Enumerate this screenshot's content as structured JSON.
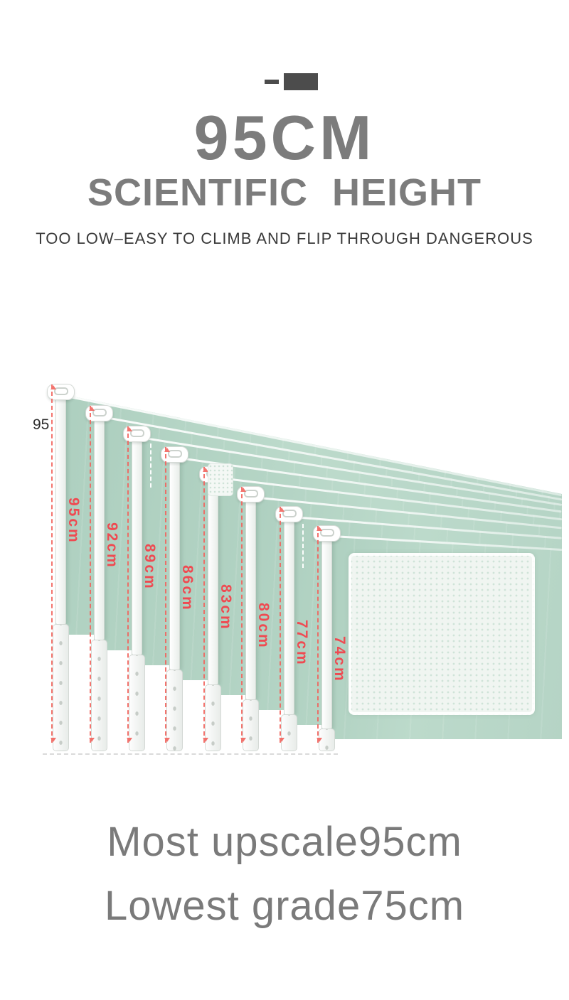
{
  "header": {
    "title": "95CM",
    "subtitle": "SCIENTIFIC HEIGHT",
    "tagline": "TOO LOW–EASY TO CLIMB AND FLIP THROUGH DANGEROUS"
  },
  "diagram": {
    "left_measure_label": "95",
    "rails": [
      {
        "label": "95cm"
      },
      {
        "label": "92cm"
      },
      {
        "label": "89cm"
      },
      {
        "label": "86cm"
      },
      {
        "label": "83cm"
      },
      {
        "label": "80cm"
      },
      {
        "label": "77cm"
      },
      {
        "label": "74cm"
      }
    ]
  },
  "footer": {
    "line1": "Most upscale95cm",
    "line2": "Lowest grade75cm"
  },
  "colors": {
    "panel_green": "#b8d6c7",
    "label_red": "#ef4a51",
    "heading_gray": "#7c7c7c",
    "tagline_dark": "#3a3a3a"
  }
}
